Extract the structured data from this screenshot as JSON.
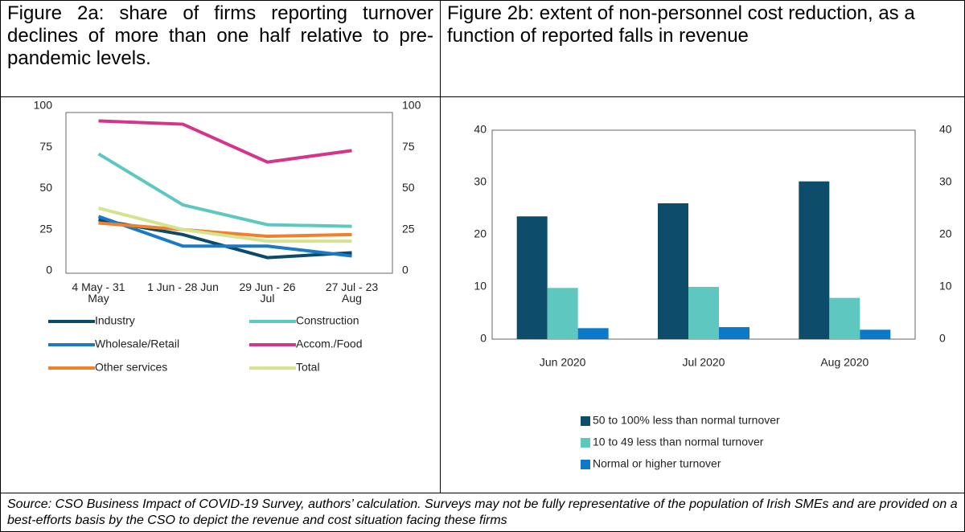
{
  "chart_data": [
    {
      "type": "line",
      "title": "Figure 2a: share of firms reporting turnover declines of more than one half relative to pre-pandemic levels.",
      "categories": [
        "4 May - 31 May",
        "1 Jun - 28 Jun",
        "29 Jun - 26 Jul",
        "27 Jul - 23 Aug"
      ],
      "series": [
        {
          "name": "Industry",
          "color": "#0b4a6b",
          "values": [
            31,
            22,
            8,
            11
          ]
        },
        {
          "name": "Construction",
          "color": "#5ec8c0",
          "values": [
            71,
            40,
            28,
            27
          ]
        },
        {
          "name": "Wholesale/Retail",
          "color": "#1a7ac4",
          "values": [
            33,
            15,
            15,
            9
          ]
        },
        {
          "name": "Accom./Food",
          "color": "#d6338a",
          "values": [
            91,
            89,
            66,
            73
          ]
        },
        {
          "name": "Other services",
          "color": "#f0802a",
          "values": [
            29,
            25,
            21,
            22
          ]
        },
        {
          "name": "Total",
          "color": "#d4e38f",
          "values": [
            38,
            25,
            18,
            18
          ]
        }
      ],
      "ylim": [
        0,
        100
      ],
      "yticks": [
        0,
        25,
        50,
        75,
        100
      ],
      "y2lim": [
        0,
        100
      ],
      "y2ticks": [
        0,
        25,
        50,
        75,
        100
      ],
      "grid": false
    },
    {
      "type": "bar",
      "title": "Figure 2b: extent of non-personnel cost reduction, as a function of reported falls in revenue",
      "categories": [
        "Jun 2020",
        "Jul 2020",
        "Aug 2020"
      ],
      "series": [
        {
          "name": "50 to 100% less than normal turnover",
          "color": "#0d4c6b",
          "values": [
            23.5,
            26,
            30.2
          ]
        },
        {
          "name": "10 to 49 less than normal turnover",
          "color": "#5ec8c0",
          "values": [
            9.8,
            10,
            7.9
          ]
        },
        {
          "name": "Normal or higher turnover",
          "color": "#0c78c8",
          "values": [
            2.1,
            2.3,
            1.8
          ]
        }
      ],
      "ylim": [
        0,
        40
      ],
      "yticks": [
        0,
        10,
        20,
        30,
        40
      ],
      "y2lim": [
        0,
        40
      ],
      "y2ticks": [
        0,
        10,
        20,
        30,
        40
      ],
      "grid": false
    }
  ],
  "source": "Source: CSO Business Impact of COVID-19 Survey, authors’ calculation. Surveys may not be fully representative of the population of Irish SMEs and are provided on a best-efforts basis by the CSO to depict the revenue and cost situation facing these firms"
}
